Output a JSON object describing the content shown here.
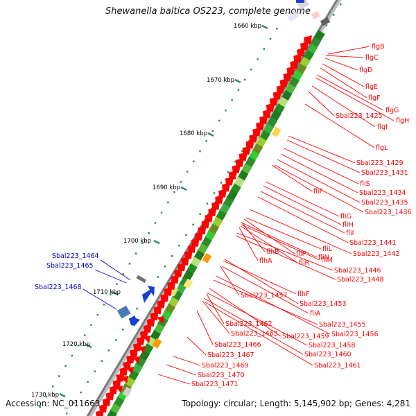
{
  "title": "Shewanella baltica OS223, complete genome",
  "footer": {
    "accession": "Accession: NC_011663",
    "summary": "Topology: circular; Length: 5,145,902 bp; Genes: 4,281"
  },
  "colors": {
    "forward_gene": "#ff0000",
    "reverse_gene_dark": "#228b22",
    "reverse_gene_light": "#9acd32",
    "label_red": "#ff0000",
    "label_blue": "#0000cc",
    "backbone": "#808080",
    "tick": "#2e8b57"
  },
  "kbp_ticks": [
    "1660 kbp",
    "1670 kbp",
    "1680 kbp",
    "1690 kbp",
    "1700 kbp",
    "1710 kbp",
    "1720 kbp",
    "1730 kbp"
  ],
  "labels_right": [
    {
      "text": "flgB",
      "kind": "red"
    },
    {
      "text": "flgC",
      "kind": "red"
    },
    {
      "text": "flgD",
      "kind": "red"
    },
    {
      "text": "flgE",
      "kind": "red"
    },
    {
      "text": "flgF",
      "kind": "red"
    },
    {
      "text": "flgG",
      "kind": "red"
    },
    {
      "text": "flgH",
      "kind": "red"
    },
    {
      "text": "Sbal223_1425",
      "kind": "red"
    },
    {
      "text": "flgI",
      "kind": "red"
    },
    {
      "text": "flgL",
      "kind": "red"
    },
    {
      "text": "Sbal223_1429",
      "kind": "red"
    },
    {
      "text": "Sbal223_1431",
      "kind": "red"
    },
    {
      "text": "fliS",
      "kind": "red"
    },
    {
      "text": "fliF",
      "kind": "red"
    },
    {
      "text": "Sbal223_1434",
      "kind": "red"
    },
    {
      "text": "Sbal223_1435",
      "kind": "red"
    },
    {
      "text": "Sbal223_1436",
      "kind": "red"
    },
    {
      "text": "fliG",
      "kind": "red"
    },
    {
      "text": "fliH",
      "kind": "red"
    },
    {
      "text": "fliI",
      "kind": "red"
    },
    {
      "text": "Sbal223_1441",
      "kind": "red"
    },
    {
      "text": "fliL",
      "kind": "red"
    },
    {
      "text": "flhB",
      "kind": "red"
    },
    {
      "text": "fliP",
      "kind": "red"
    },
    {
      "text": "fliN",
      "kind": "red"
    },
    {
      "text": "Sbal223_1442",
      "kind": "red"
    },
    {
      "text": "flhA",
      "kind": "red"
    },
    {
      "text": "fliR",
      "kind": "red"
    },
    {
      "text": "fliM",
      "kind": "red"
    },
    {
      "text": "Sbal223_1446",
      "kind": "red"
    },
    {
      "text": "Sbal223_1448",
      "kind": "red"
    },
    {
      "text": "flhF",
      "kind": "red"
    },
    {
      "text": "Sbal223_1457",
      "kind": "red"
    },
    {
      "text": "Sbal223_1453",
      "kind": "red"
    },
    {
      "text": "fliA",
      "kind": "red"
    },
    {
      "text": "Sbal223_1462",
      "kind": "red"
    },
    {
      "text": "Sbal223_1455",
      "kind": "red"
    },
    {
      "text": "Sbal223_1463",
      "kind": "red"
    },
    {
      "text": "Sbal223_1459",
      "kind": "red"
    },
    {
      "text": "Sbal223_1456",
      "kind": "red"
    },
    {
      "text": "Sbal223_1466",
      "kind": "red"
    },
    {
      "text": "Sbal223_1458",
      "kind": "red"
    },
    {
      "text": "Sbal223_1467",
      "kind": "red"
    },
    {
      "text": "Sbal223_1460",
      "kind": "red"
    },
    {
      "text": "Sbal223_1469",
      "kind": "red"
    },
    {
      "text": "Sbal223_1461",
      "kind": "red"
    },
    {
      "text": "Sbal223_1470",
      "kind": "red"
    },
    {
      "text": "Sbal223_1471",
      "kind": "red"
    }
  ],
  "labels_left": [
    {
      "text": "Sbal223_1464",
      "kind": "blue"
    },
    {
      "text": "Sbal223_1465",
      "kind": "blue"
    },
    {
      "text": "Sbal223_1468",
      "kind": "blue"
    }
  ]
}
